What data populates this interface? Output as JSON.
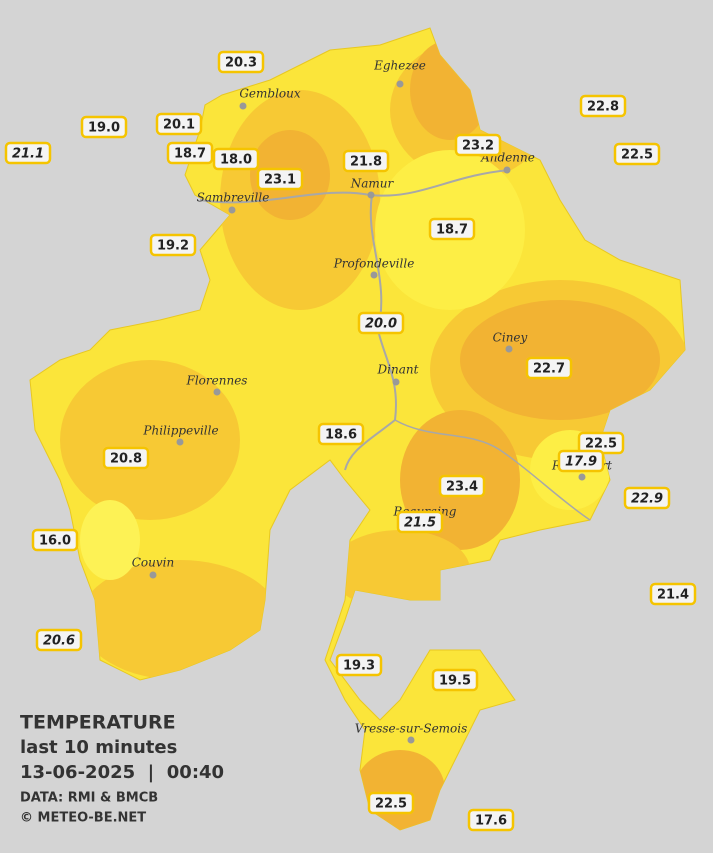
{
  "title": {
    "heading": "TEMPERATURE",
    "period": "last 10 minutes",
    "datetime": "13-06-2025  |  00:40",
    "source": "DATA: RMI & BMCB",
    "copyright": "© METEO-BE.NET"
  },
  "towns": [
    "Eghezee",
    "Gembloux",
    "Andenne",
    "Namur",
    "Sambreville",
    "Profondeville",
    "Ciney",
    "Dinant",
    "Florennes",
    "Philippeville",
    "Rochefort",
    "Beauraing",
    "Couvin",
    "Vresse-sur-Semois"
  ],
  "stations": [
    {
      "label": "20.3",
      "italic": false
    },
    {
      "label": "19.0",
      "italic": false
    },
    {
      "label": "20.1",
      "italic": false
    },
    {
      "label": "21.1",
      "italic": true
    },
    {
      "label": "18.7",
      "italic": false
    },
    {
      "label": "18.0",
      "italic": false
    },
    {
      "label": "23.1",
      "italic": false
    },
    {
      "label": "21.8",
      "italic": false
    },
    {
      "label": "23.2",
      "italic": false
    },
    {
      "label": "22.8",
      "italic": false
    },
    {
      "label": "22.5",
      "italic": false
    },
    {
      "label": "19.2",
      "italic": false
    },
    {
      "label": "18.7",
      "italic": false
    },
    {
      "label": "20.0",
      "italic": true
    },
    {
      "label": "22.7",
      "italic": false
    },
    {
      "label": "20.8",
      "italic": false
    },
    {
      "label": "18.6",
      "italic": false
    },
    {
      "label": "22.5",
      "italic": false
    },
    {
      "label": "17.9",
      "italic": true
    },
    {
      "label": "23.4",
      "italic": false
    },
    {
      "label": "22.9",
      "italic": true
    },
    {
      "label": "21.5",
      "italic": true
    },
    {
      "label": "16.0",
      "italic": false
    },
    {
      "label": "21.4",
      "italic": false
    },
    {
      "label": "20.6",
      "italic": true
    },
    {
      "label": "19.3",
      "italic": false
    },
    {
      "label": "19.5",
      "italic": false
    },
    {
      "label": "22.5",
      "italic": false
    },
    {
      "label": "17.6",
      "italic": false
    }
  ]
}
